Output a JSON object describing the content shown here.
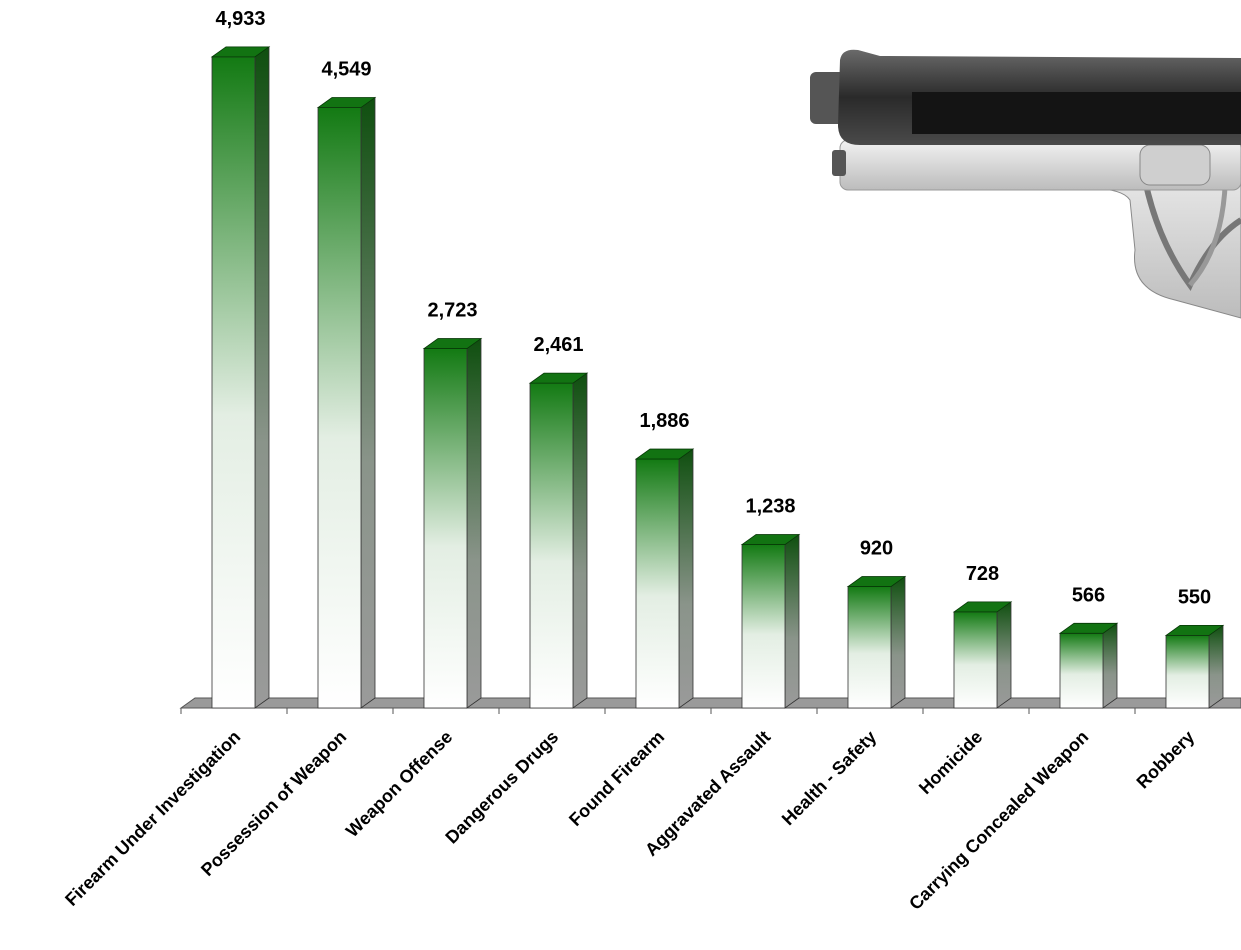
{
  "chart_data": {
    "type": "bar3d",
    "categories": [
      "Firearm Under Investigation",
      "Possession of Weapon",
      "Weapon Offense",
      "Dangerous Drugs",
      "Found Firearm",
      "Aggravated Assault",
      "Health - Safety",
      "Homicide",
      "Carrying Concealed Weapon",
      "Robbery"
    ],
    "values": [
      4933,
      4549,
      2723,
      2461,
      1886,
      1238,
      920,
      728,
      566,
      550
    ],
    "value_labels": [
      "4,933",
      "4,549",
      "2,723",
      "2,461",
      "1,886",
      "1,238",
      "920",
      "728",
      "566",
      "550"
    ],
    "color": "#127312",
    "ylim": [
      0,
      5000
    ]
  }
}
